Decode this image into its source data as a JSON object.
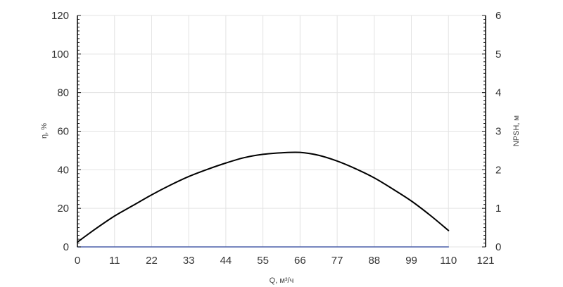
{
  "chart_data": {
    "type": "line",
    "title": "",
    "xlabel": "Q, м³/ч",
    "ylabel_left": "η, %",
    "ylabel_right": "NPSH, м",
    "xlim": [
      0,
      121
    ],
    "ylim_left": [
      0,
      120
    ],
    "ylim_right": [
      0,
      6
    ],
    "x_ticks": [
      "0",
      "11",
      "22",
      "33",
      "44",
      "55",
      "66",
      "77",
      "88",
      "99",
      "110",
      "121"
    ],
    "y_left_ticks": [
      "0",
      "20",
      "40",
      "60",
      "80",
      "100",
      "120"
    ],
    "y_right_ticks": [
      "0",
      "1",
      "2",
      "3",
      "4",
      "5",
      "6"
    ],
    "grid": true,
    "series": [
      {
        "axis": "left",
        "color": "#000000",
        "x": [
          0,
          5.5,
          11,
          16.5,
          22,
          27.5,
          33,
          38.5,
          44,
          49.5,
          55,
          60.5,
          66,
          71.5,
          77,
          82.5,
          88,
          93.5,
          99,
          104.5,
          110
        ],
        "y": [
          2.5,
          9.5,
          16,
          21.5,
          27,
          32,
          36.5,
          40.2,
          43.5,
          46.3,
          48,
          48.8,
          49,
          47.5,
          44.5,
          40.5,
          35.8,
          30,
          23.8,
          16.5,
          8.5
        ]
      },
      {
        "axis": "right",
        "color": "#4a5fa8",
        "x": [
          0,
          110
        ],
        "y": [
          0,
          0
        ]
      }
    ]
  }
}
